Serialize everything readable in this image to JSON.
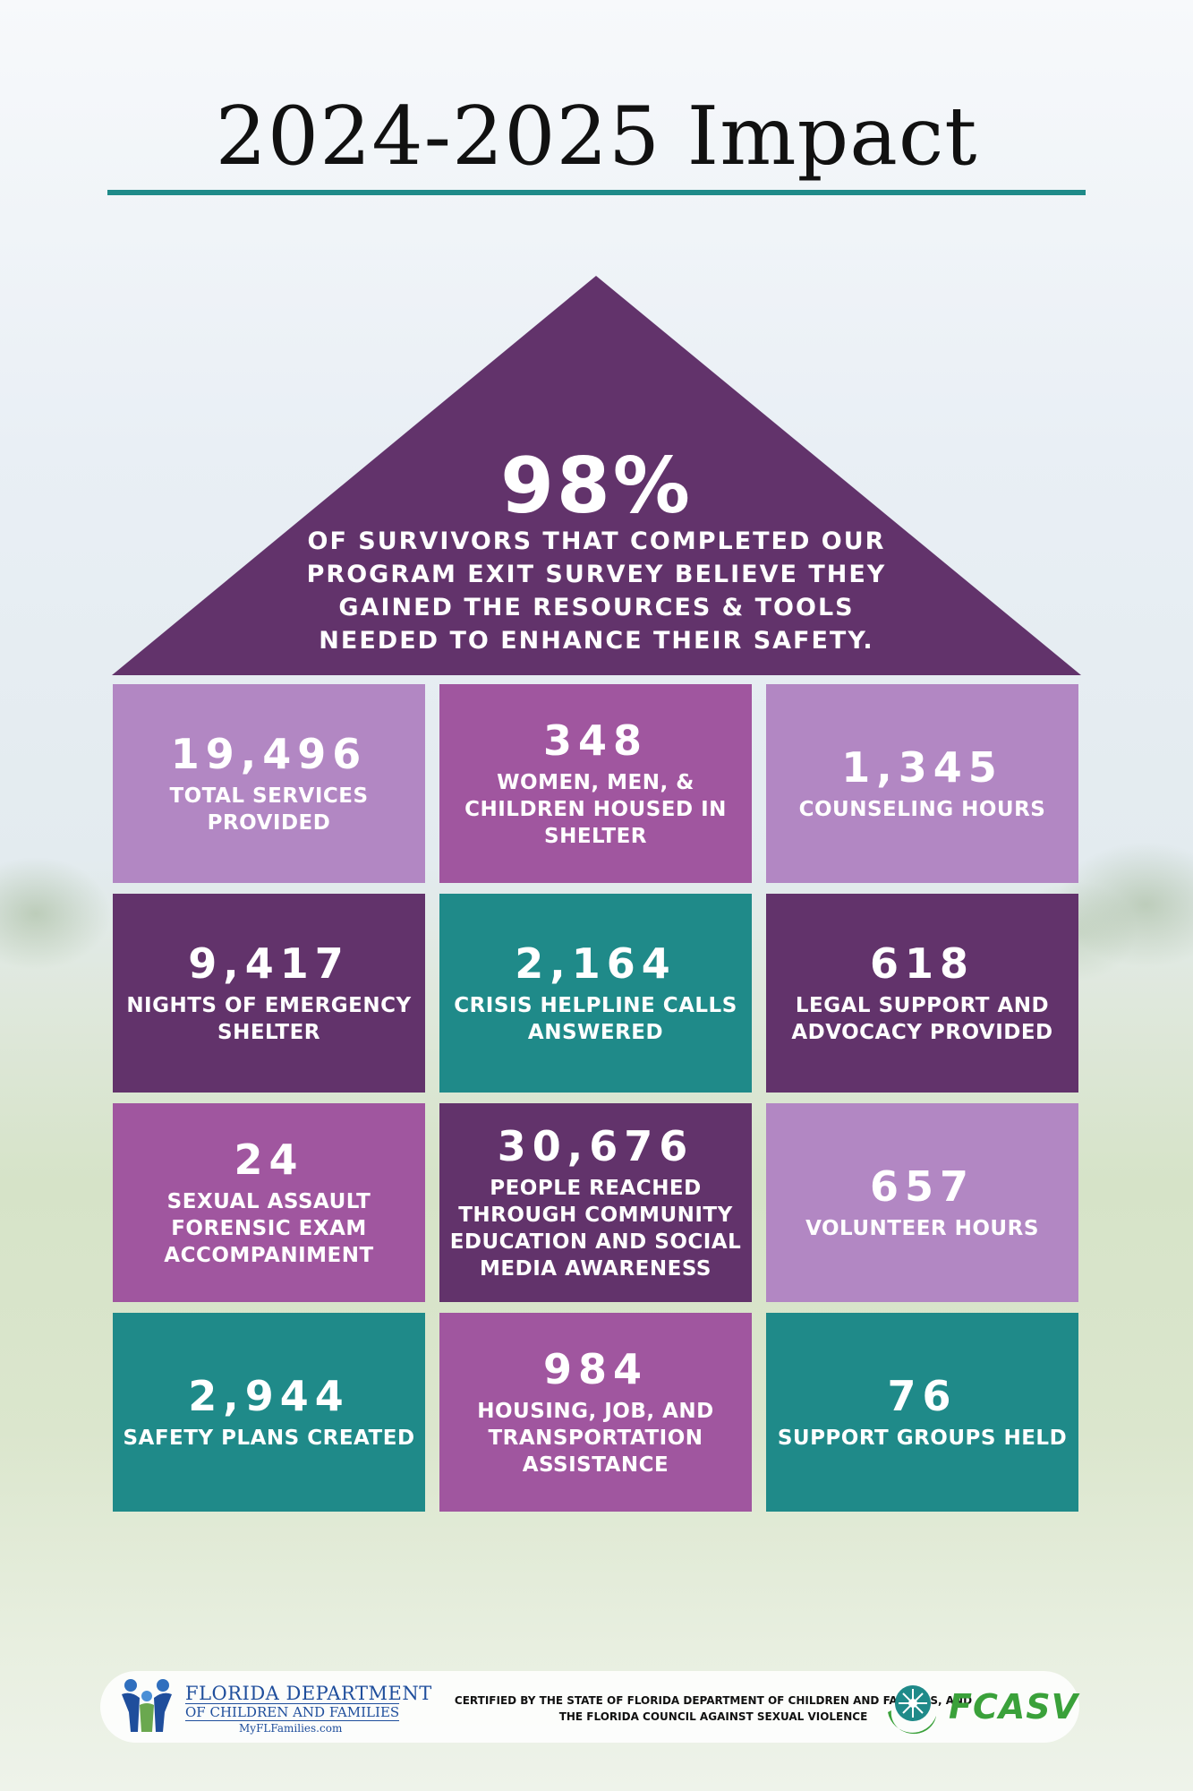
{
  "title": "2024-2025 Impact",
  "headline": {
    "value": "98%",
    "text": "OF SURVIVORS THAT COMPLETED OUR PROGRAM EXIT SURVEY BELIEVE THEY GAINED THE RESOURCES & TOOLS NEEDED TO ENHANCE THEIR SAFETY."
  },
  "colors": {
    "dark_purple": "#62336b",
    "mid_purple": "#a0569f",
    "light_purple": "#b287c3",
    "teal": "#1f8a89"
  },
  "stats": [
    {
      "value": "19,496",
      "label": "TOTAL SERVICES PROVIDED",
      "color": "#b287c3"
    },
    {
      "value": "348",
      "label": "WOMEN, MEN, & CHILDREN HOUSED IN SHELTER",
      "color": "#a0569f"
    },
    {
      "value": "1,345",
      "label": "COUNSELING HOURS",
      "color": "#b287c3"
    },
    {
      "value": "9,417",
      "label": "NIGHTS OF EMERGENCY SHELTER",
      "color": "#62336b"
    },
    {
      "value": "2,164",
      "label": "CRISIS HELPLINE CALLS ANSWERED",
      "color": "#1f8a89"
    },
    {
      "value": "618",
      "label": "LEGAL SUPPORT AND ADVOCACY PROVIDED",
      "color": "#62336b"
    },
    {
      "value": "24",
      "label": "SEXUAL ASSAULT FORENSIC EXAM ACCOMPANIMENT",
      "color": "#a0569f"
    },
    {
      "value": "30,676",
      "label": "PEOPLE REACHED THROUGH COMMUNITY EDUCATION AND SOCIAL MEDIA AWARENESS",
      "color": "#62336b"
    },
    {
      "value": "657",
      "label": "VOLUNTEER HOURS",
      "color": "#b287c3"
    },
    {
      "value": "2,944",
      "label": "SAFETY PLANS CREATED",
      "color": "#1f8a89"
    },
    {
      "value": "984",
      "label": "HOUSING, JOB, AND TRANSPORTATION ASSISTANCE",
      "color": "#a0569f"
    },
    {
      "value": "76",
      "label": "SUPPORT GROUPS HELD",
      "color": "#1f8a89"
    }
  ],
  "footer": {
    "dcf_line1": "FLORIDA DEPARTMENT",
    "dcf_line2": "OF CHILDREN AND FAMILIES",
    "dcf_line3": "MyFLFamilies.com",
    "certification": "CERTIFIED BY THE STATE OF FLORIDA DEPARTMENT OF CHILDREN AND FAMILIES, AND THE FLORIDA COUNCIL AGAINST SEXUAL VIOLENCE",
    "fcasv": "FCASV"
  }
}
